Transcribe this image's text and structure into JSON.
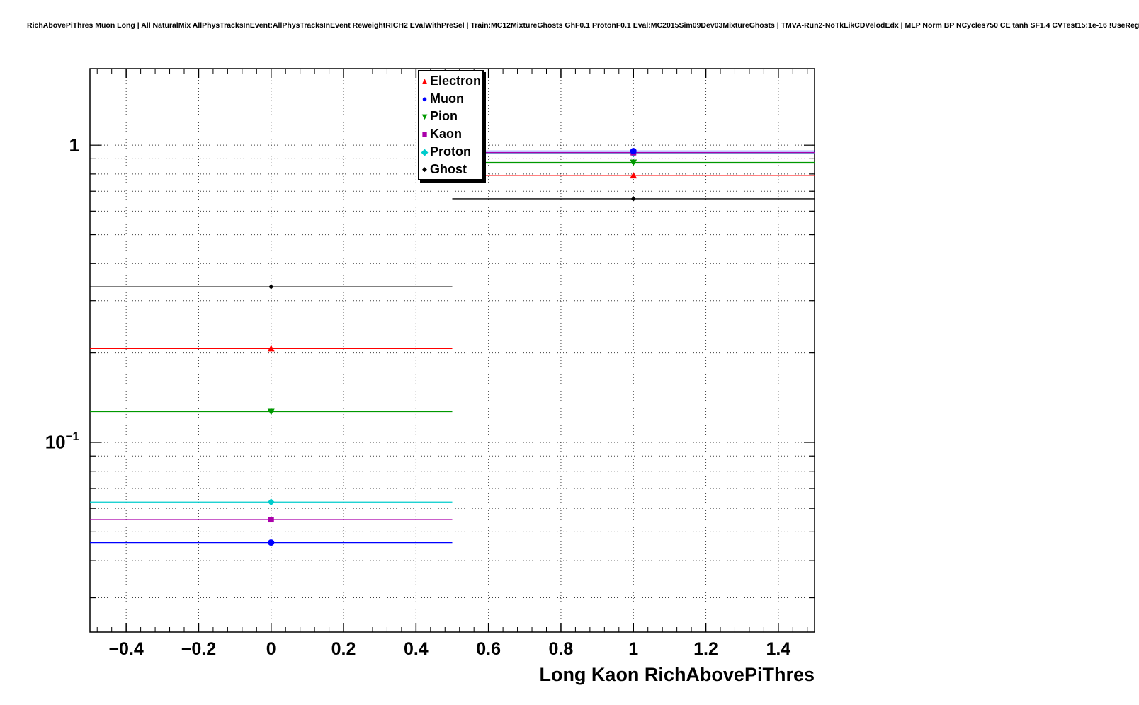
{
  "header": {
    "title": "RichAbovePiThres Muon Long | All NaturalMix AllPhysTracksInEvent:AllPhysTracksInEvent ReweightRICH2 EvalWithPreSel | Train:MC12MixtureGhosts GhF0.1 ProtonF0.1 Eval:MC2015Sim09Dev03MixtureGhosts | TMVA-Run2-NoTkLikCDVelodEdx | MLP Norm BP NCycles750 CE tanh SF1.4 CVTest15:1e-16 !UseReg"
  },
  "axes": {
    "x": {
      "title": "Long Kaon RichAbovePiThres",
      "tick_labels": [
        "−0.4",
        "−0.2",
        "0",
        "0.2",
        "0.4",
        "0.6",
        "0.8",
        "1",
        "1.2",
        "1.4"
      ],
      "tick_values": [
        -0.4,
        -0.2,
        0,
        0.2,
        0.4,
        0.6,
        0.8,
        1.0,
        1.2,
        1.4
      ]
    },
    "y": {
      "scale": "log",
      "tick_labels": [
        {
          "text": "1",
          "sup": ""
        },
        {
          "text": "10",
          "sup": "−1"
        }
      ]
    }
  },
  "chart_data": {
    "type": "scatter",
    "title": "RichAbovePiThres Muon Long | All NaturalMix AllPhysTracksInEvent:AllPhysTracksInEvent ReweightRICH2 EvalWithPreSel | Train:MC12MixtureGhosts GhF0.1 ProtonF0.1 Eval:MC2015Sim09Dev03MixtureGhosts | TMVA-Run2-NoTkLikCDVelodEdx | MLP Norm BP NCycles750 CE tanh SF1.4 CVTest15:1e-16 !UseReg",
    "xlabel": "Long Kaon RichAbovePiThres",
    "ylabel": "",
    "x": [
      0,
      1
    ],
    "bin_halfwidth": 0.5,
    "xlim": [
      -0.5,
      1.5
    ],
    "ylim": [
      0.023,
      1.81
    ],
    "yscale": "log",
    "ytick_values": [
      1,
      0.1
    ],
    "grid": true,
    "legend_position": "top-center",
    "series": [
      {
        "name": "Electron",
        "marker": "triangle-up",
        "color": "#ff0000",
        "values": [
          0.207,
          0.79
        ]
      },
      {
        "name": "Muon",
        "marker": "circle",
        "color": "#0000ff",
        "values": [
          0.046,
          0.955
        ]
      },
      {
        "name": "Pion",
        "marker": "triangle-down",
        "color": "#009900",
        "values": [
          0.127,
          0.875
        ]
      },
      {
        "name": "Kaon",
        "marker": "square",
        "color": "#aa00aa",
        "values": [
          0.055,
          0.944
        ]
      },
      {
        "name": "Proton",
        "marker": "diamond",
        "color": "#00cccc",
        "values": [
          0.063,
          0.936
        ]
      },
      {
        "name": "Ghost",
        "marker": "small-diamond",
        "color": "#000000",
        "values": [
          0.334,
          0.66
        ]
      }
    ]
  }
}
